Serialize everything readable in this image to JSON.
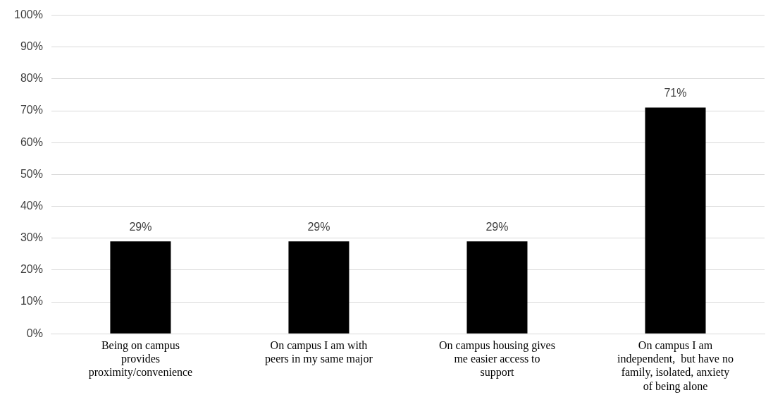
{
  "chart_data": {
    "type": "bar",
    "categories": [
      "Being on campus provides proximity/convenience",
      "On campus I am with peers in my same major",
      "On campus housing gives me easier access to support",
      "On campus I am independent,  but have no family, isolated, anxiety of being alone"
    ],
    "values": [
      29,
      29,
      29,
      71
    ],
    "color": "#000000",
    "value_labels": [
      "29%",
      "29%",
      "29%",
      "71%"
    ],
    "ylim": [
      0,
      100
    ],
    "yticks": [
      {
        "value": 0,
        "label": "0%"
      },
      {
        "value": 10,
        "label": "10%"
      },
      {
        "value": 20,
        "label": "20%"
      },
      {
        "value": 30,
        "label": "30%"
      },
      {
        "value": 40,
        "label": "40%"
      },
      {
        "value": 50,
        "label": "50%"
      },
      {
        "value": 60,
        "label": "60%"
      },
      {
        "value": 70,
        "label": "70%"
      },
      {
        "value": 80,
        "label": "80%"
      },
      {
        "value": 90,
        "label": "90%"
      },
      {
        "value": 100,
        "label": "100%"
      }
    ],
    "grid": "y",
    "legend": false
  }
}
